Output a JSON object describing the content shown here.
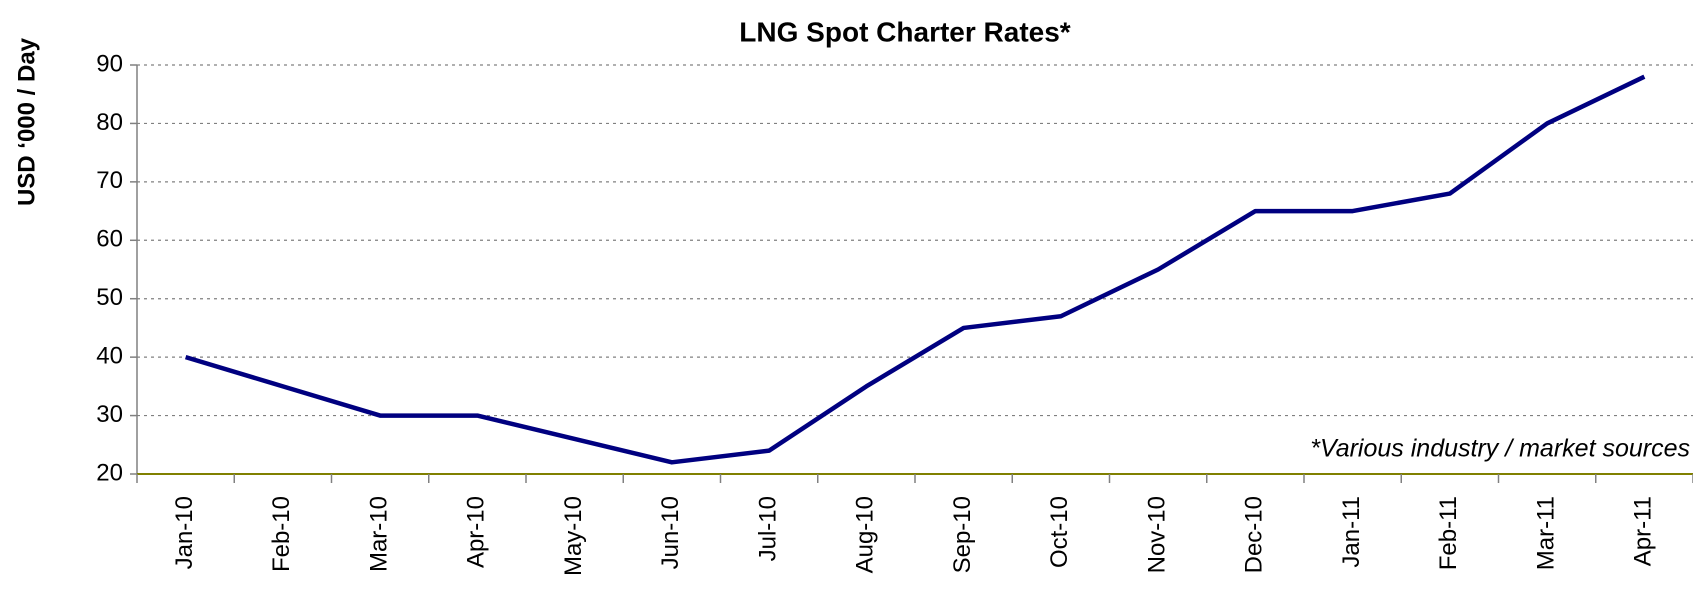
{
  "chart_data": {
    "type": "line",
    "title": "LNG Spot Charter Rates*",
    "y_label": "USD ‘000 / Day",
    "annotation": "*Various industry / market sources",
    "categories": [
      "Jan-10",
      "Feb-10",
      "Mar-10",
      "Apr-10",
      "May-10",
      "Jun-10",
      "Jul-10",
      "Aug-10",
      "Sep-10",
      "Oct-10",
      "Nov-10",
      "Dec-10",
      "Jan-11",
      "Feb-11",
      "Mar-11",
      "Apr-11"
    ],
    "series": [
      {
        "name": "LNG Spot Charter Rates",
        "color": "#000080",
        "values": [
          40,
          35,
          30,
          30,
          26,
          22,
          24,
          35,
          45,
          47,
          55,
          65,
          65,
          68,
          80,
          88
        ]
      }
    ],
    "ylim": [
      20,
      90
    ],
    "yticks": [
      20,
      30,
      40,
      50,
      60,
      70,
      80,
      90
    ],
    "grid": true
  }
}
